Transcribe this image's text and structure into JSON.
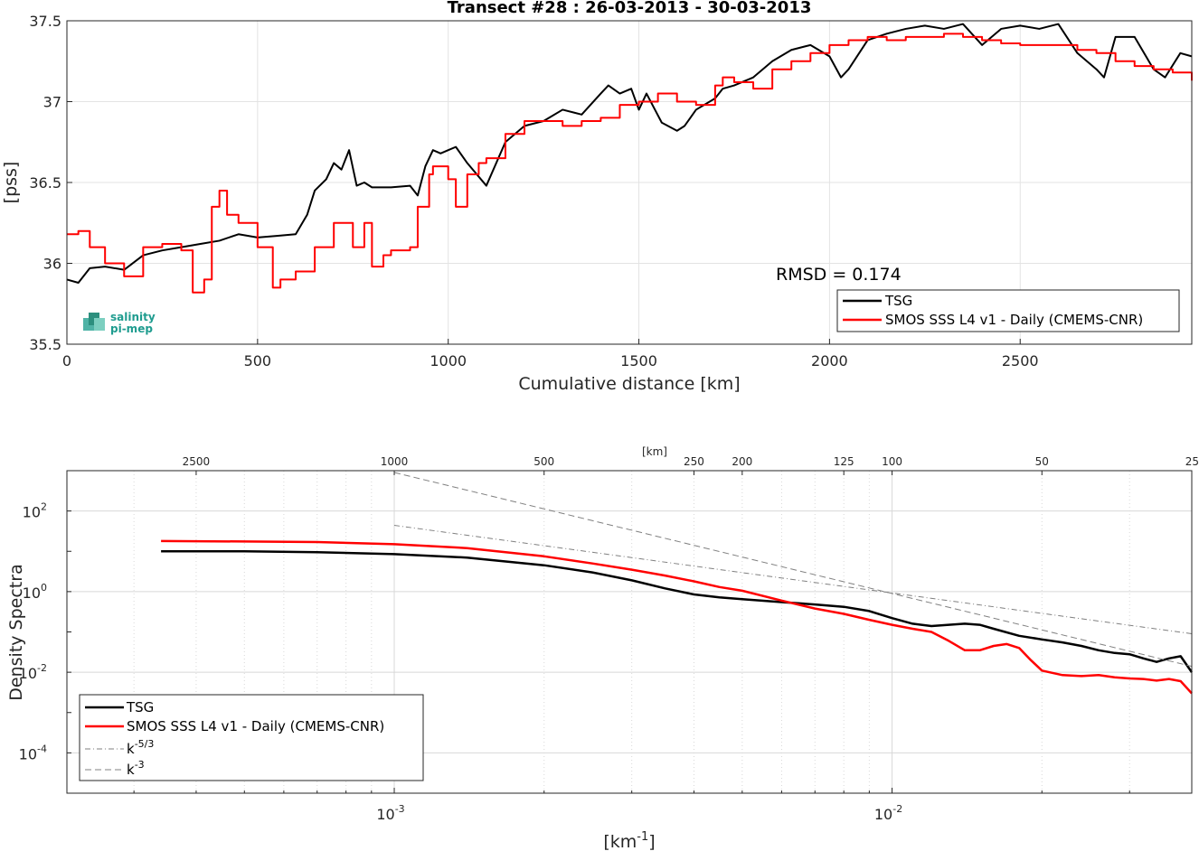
{
  "chart_data": [
    {
      "type": "line",
      "title": "Transect #28 : 26-03-2013 - 30-03-2013",
      "xlabel": "Cumulative distance [km]",
      "ylabel": "[pss]",
      "xlim": [
        0,
        2950
      ],
      "ylim": [
        35.5,
        37.5
      ],
      "xticks": [
        "0",
        "500",
        "1000",
        "1500",
        "2000",
        "2500"
      ],
      "yticks": [
        "35.5",
        "36",
        "36.5",
        "37",
        "37.5"
      ],
      "grid": true,
      "legend_position": "bottom-right",
      "annotation": "RMSD = 0.174",
      "logo": "salinity pi-mep",
      "series": [
        {
          "name": "TSG",
          "color": "#000000",
          "x": [
            0,
            30,
            60,
            100,
            150,
            200,
            250,
            300,
            350,
            400,
            450,
            500,
            550,
            600,
            630,
            650,
            680,
            700,
            720,
            740,
            760,
            780,
            800,
            850,
            900,
            920,
            940,
            960,
            980,
            1000,
            1020,
            1050,
            1100,
            1150,
            1200,
            1250,
            1300,
            1350,
            1400,
            1420,
            1450,
            1480,
            1500,
            1520,
            1560,
            1600,
            1620,
            1650,
            1700,
            1720,
            1750,
            1800,
            1850,
            1900,
            1950,
            2000,
            2030,
            2050,
            2100,
            2150,
            2200,
            2250,
            2300,
            2350,
            2400,
            2450,
            2500,
            2550,
            2600,
            2650,
            2700,
            2720,
            2750,
            2800,
            2850,
            2880,
            2920,
            2950
          ],
          "y": [
            35.9,
            35.88,
            35.97,
            35.98,
            35.96,
            36.05,
            36.08,
            36.1,
            36.12,
            36.14,
            36.18,
            36.16,
            36.17,
            36.18,
            36.3,
            36.45,
            36.52,
            36.62,
            36.58,
            36.7,
            36.48,
            36.5,
            36.47,
            36.47,
            36.48,
            36.42,
            36.6,
            36.7,
            36.68,
            36.7,
            36.72,
            36.62,
            36.48,
            36.75,
            36.85,
            36.88,
            36.95,
            36.92,
            37.05,
            37.1,
            37.05,
            37.08,
            36.95,
            37.05,
            36.87,
            36.82,
            36.85,
            36.95,
            37.02,
            37.08,
            37.1,
            37.15,
            37.25,
            37.32,
            37.35,
            37.28,
            37.15,
            37.2,
            37.38,
            37.42,
            37.45,
            37.47,
            37.45,
            37.48,
            37.35,
            37.45,
            37.47,
            37.45,
            37.48,
            37.3,
            37.2,
            37.15,
            37.4,
            37.4,
            37.2,
            37.15,
            37.3,
            37.28
          ]
        },
        {
          "name": "SMOS SSS L4 v1 - Daily (CMEMS-CNR)",
          "color": "#ff0000",
          "x": [
            0,
            30,
            60,
            100,
            150,
            200,
            250,
            300,
            330,
            360,
            380,
            400,
            420,
            450,
            500,
            540,
            560,
            600,
            650,
            700,
            750,
            780,
            800,
            830,
            850,
            900,
            920,
            950,
            960,
            1000,
            1020,
            1050,
            1080,
            1100,
            1150,
            1200,
            1250,
            1300,
            1350,
            1400,
            1450,
            1500,
            1550,
            1600,
            1650,
            1700,
            1720,
            1750,
            1800,
            1850,
            1900,
            1950,
            2000,
            2050,
            2100,
            2150,
            2200,
            2250,
            2300,
            2350,
            2400,
            2450,
            2500,
            2550,
            2600,
            2650,
            2700,
            2750,
            2800,
            2850,
            2900,
            2950
          ],
          "y": [
            36.18,
            36.2,
            36.1,
            36.0,
            35.92,
            36.1,
            36.12,
            36.08,
            35.82,
            35.9,
            36.35,
            36.45,
            36.3,
            36.25,
            36.1,
            35.85,
            35.9,
            35.95,
            36.1,
            36.25,
            36.1,
            36.25,
            35.98,
            36.05,
            36.08,
            36.1,
            36.35,
            36.55,
            36.6,
            36.52,
            36.35,
            36.55,
            36.62,
            36.65,
            36.8,
            36.88,
            36.88,
            36.85,
            36.88,
            36.9,
            36.98,
            37.0,
            37.05,
            37.0,
            36.98,
            37.1,
            37.15,
            37.12,
            37.08,
            37.2,
            37.25,
            37.3,
            37.35,
            37.38,
            37.4,
            37.38,
            37.4,
            37.4,
            37.42,
            37.4,
            37.38,
            37.36,
            37.35,
            37.35,
            37.35,
            37.32,
            37.3,
            37.25,
            37.22,
            37.2,
            37.18,
            37.13
          ]
        }
      ]
    },
    {
      "type": "line",
      "xlabel": "[km-1]",
      "ylabel": "Density Spectra",
      "x_scale": "log",
      "y_scale": "log",
      "xlim": [
        0.00022,
        0.04
      ],
      "ylim": [
        1e-05,
        1000
      ],
      "xticks": [
        "10-3",
        "10-2"
      ],
      "yticks": [
        "10-4",
        "10-2",
        "100",
        "102"
      ],
      "top_axis_label": "[km]",
      "top_axis_ticks": [
        "2500",
        "1000",
        "500",
        "250",
        "200",
        "125",
        "100",
        "50",
        "25"
      ],
      "grid": true,
      "legend_position": "bottom-left",
      "series": [
        {
          "name": "TSG",
          "color": "#000000",
          "x": [
            0.00034,
            0.0005,
            0.0007,
            0.001,
            0.0014,
            0.002,
            0.0025,
            0.003,
            0.0035,
            0.004,
            0.0045,
            0.005,
            0.006,
            0.007,
            0.008,
            0.009,
            0.01,
            0.011,
            0.012,
            0.013,
            0.014,
            0.015,
            0.016,
            0.018,
            0.02,
            0.022,
            0.024,
            0.026,
            0.028,
            0.03,
            0.032,
            0.034,
            0.036,
            0.038,
            0.04
          ],
          "y": [
            10,
            10,
            9.5,
            8.5,
            7,
            4.5,
            3,
            1.9,
            1.2,
            0.85,
            0.72,
            0.65,
            0.55,
            0.48,
            0.42,
            0.33,
            0.22,
            0.16,
            0.14,
            0.15,
            0.16,
            0.15,
            0.12,
            0.08,
            0.065,
            0.055,
            0.045,
            0.035,
            0.03,
            0.028,
            0.022,
            0.018,
            0.022,
            0.025,
            0.01
          ]
        },
        {
          "name": "SMOS SSS L4 v1 - Daily (CMEMS-CNR)",
          "color": "#ff0000",
          "x": [
            0.00034,
            0.0005,
            0.0007,
            0.001,
            0.0014,
            0.002,
            0.0025,
            0.003,
            0.0035,
            0.004,
            0.0045,
            0.005,
            0.006,
            0.007,
            0.008,
            0.009,
            0.01,
            0.011,
            0.012,
            0.013,
            0.014,
            0.015,
            0.016,
            0.017,
            0.018,
            0.019,
            0.02,
            0.022,
            0.024,
            0.026,
            0.028,
            0.03,
            0.032,
            0.034,
            0.036,
            0.038,
            0.04
          ],
          "y": [
            18,
            17.5,
            17,
            15,
            12,
            7.5,
            5,
            3.5,
            2.5,
            1.8,
            1.3,
            1.05,
            0.6,
            0.38,
            0.28,
            0.2,
            0.15,
            0.12,
            0.1,
            0.06,
            0.035,
            0.035,
            0.045,
            0.05,
            0.04,
            0.02,
            0.011,
            0.0085,
            0.008,
            0.0085,
            0.0075,
            0.007,
            0.0068,
            0.0062,
            0.0068,
            0.006,
            0.003
          ]
        },
        {
          "name": "k-5/3",
          "color": "#808080",
          "x": [
            0.001,
            0.04
          ],
          "y": [
            44,
            0.09
          ]
        },
        {
          "name": "k-3",
          "color": "#808080",
          "x": [
            0.001,
            0.04
          ],
          "y": [
            900,
            0.014
          ]
        }
      ]
    }
  ]
}
